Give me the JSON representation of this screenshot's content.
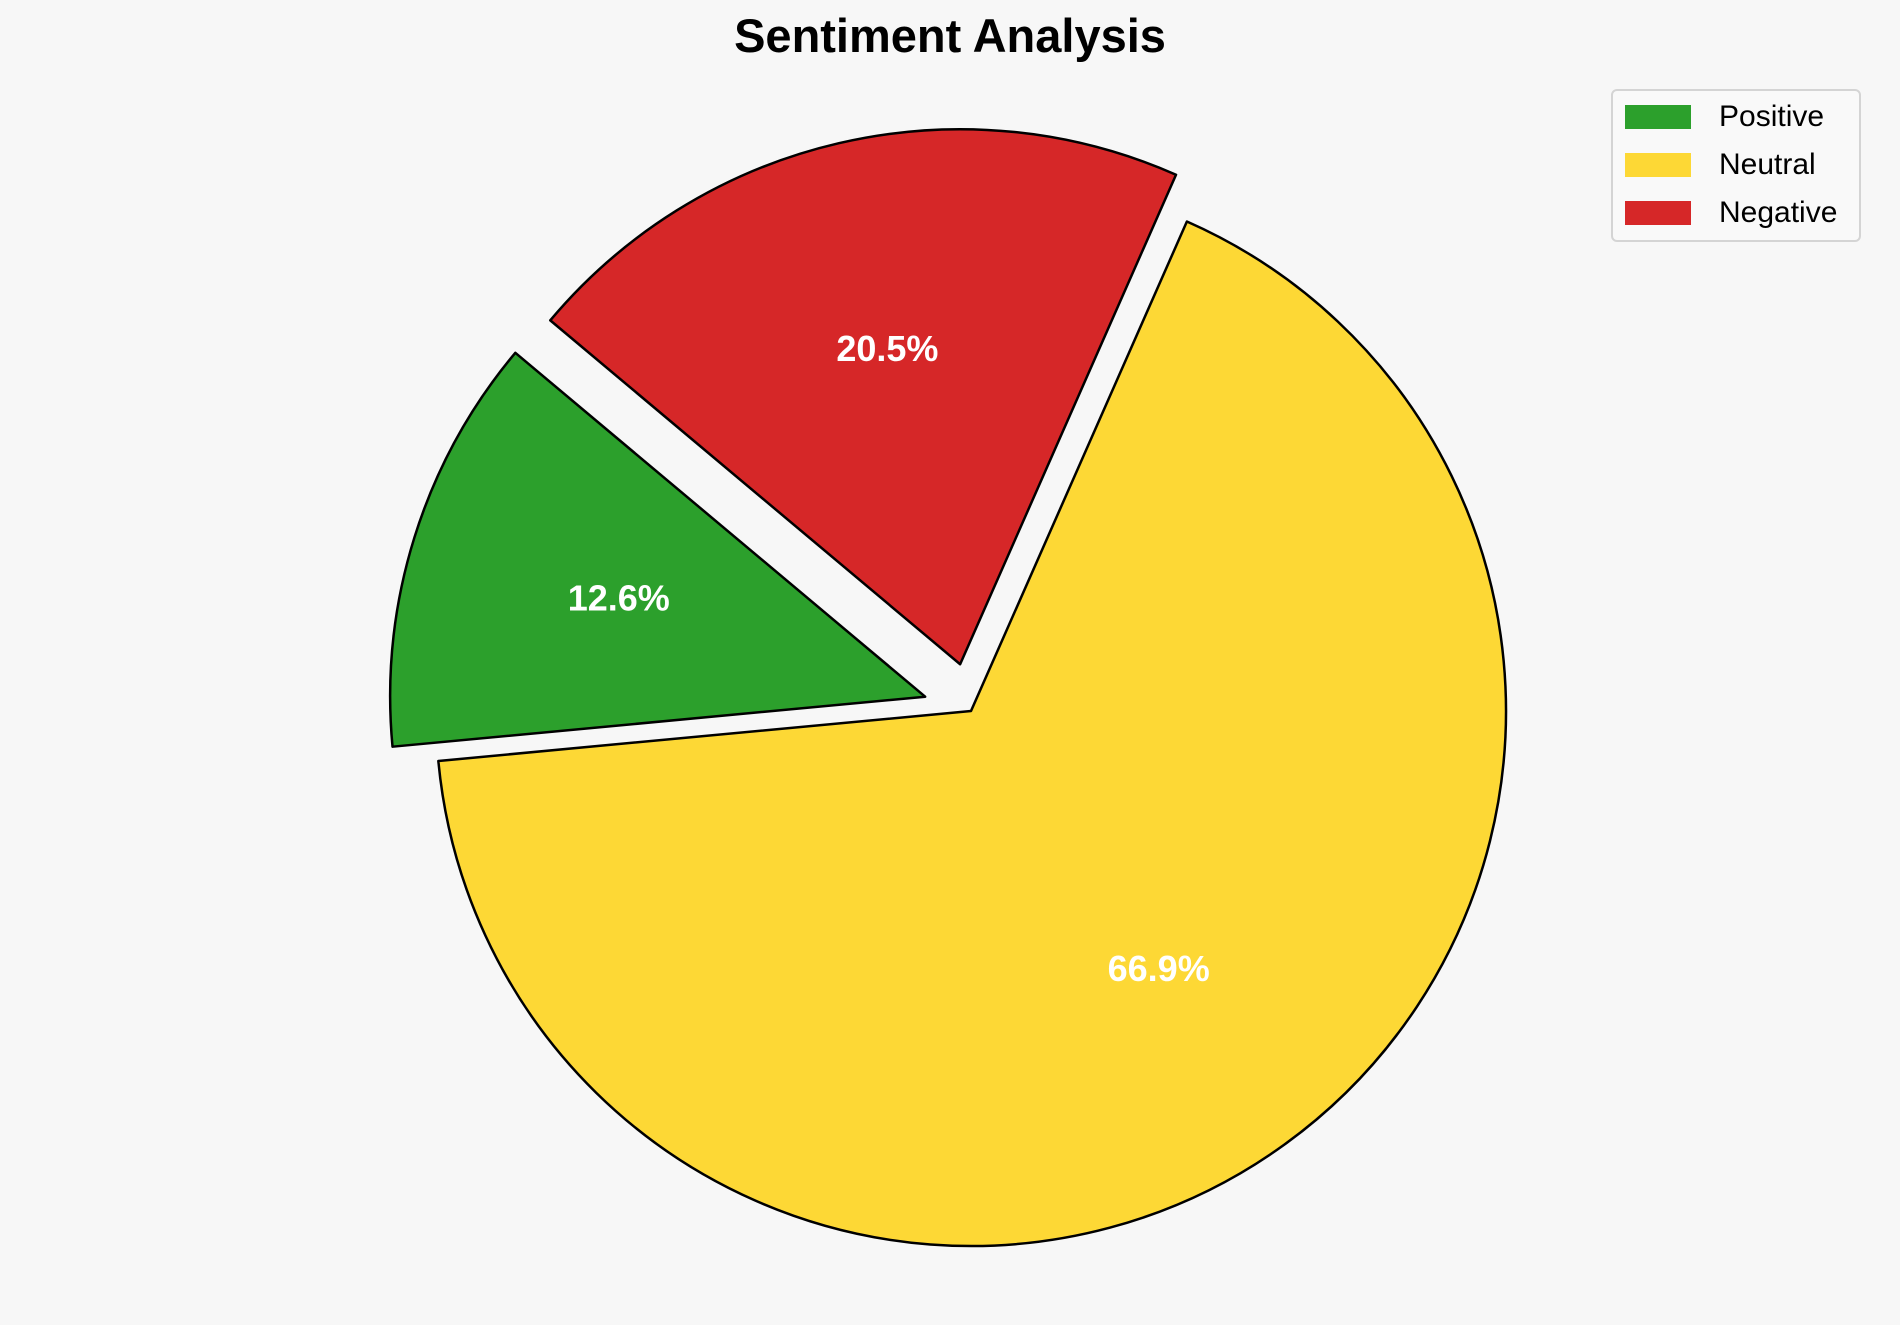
{
  "chart_data": {
    "type": "pie",
    "title": "Sentiment Analysis",
    "categories": [
      "Positive",
      "Neutral",
      "Negative"
    ],
    "values": [
      12.6,
      66.9,
      20.5
    ],
    "labels": [
      "12.6%",
      "66.9%",
      "20.5%"
    ],
    "colors": [
      "#2ca02c",
      "#fdd835",
      "#d62728"
    ],
    "exploded": [
      true,
      false,
      true
    ],
    "legend_position": "top-right"
  }
}
